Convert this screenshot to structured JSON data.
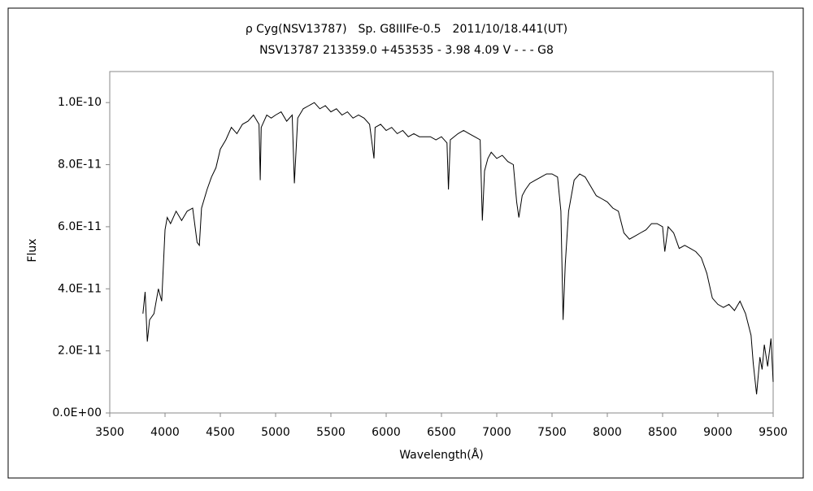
{
  "chart_data": {
    "type": "line",
    "title": "ρ Cyg(NSV13787)　Sp. G8IIIFe-0.5　2011/10/18.441(UT)",
    "subtitle": "NSV13787 213359.0 +453535 - 3.98 4.09 V - - - G8",
    "x_label": "Wavelength(Å)",
    "y_label": "Flux",
    "color": "#000000",
    "xlim": [
      3500,
      9500
    ],
    "xticks": [
      3500,
      4000,
      4500,
      5000,
      5500,
      6000,
      6500,
      7000,
      7500,
      8000,
      8500,
      9000,
      9500
    ],
    "ylim": [
      0,
      1.1e-10
    ],
    "yticks": [
      {
        "value": 0,
        "label": "0.0E+00"
      },
      {
        "value": 2e-11,
        "label": "2.0E-11"
      },
      {
        "value": 4e-11,
        "label": "4.0E-11"
      },
      {
        "value": 6e-11,
        "label": "6.0E-11"
      },
      {
        "value": 8e-11,
        "label": "8.0E-11"
      },
      {
        "value": 1e-10,
        "label": "1.0E-10"
      }
    ],
    "x": [
      3800,
      3820,
      3840,
      3860,
      3900,
      3940,
      3970,
      4000,
      4020,
      4050,
      4100,
      4150,
      4200,
      4250,
      4290,
      4310,
      4330,
      4380,
      4420,
      4460,
      4500,
      4550,
      4600,
      4650,
      4700,
      4750,
      4800,
      4850,
      4861,
      4870,
      4920,
      4960,
      5000,
      5050,
      5100,
      5150,
      5170,
      5200,
      5250,
      5300,
      5350,
      5400,
      5450,
      5500,
      5550,
      5600,
      5650,
      5700,
      5750,
      5800,
      5850,
      5890,
      5900,
      5950,
      6000,
      6050,
      6100,
      6150,
      6200,
      6250,
      6300,
      6350,
      6400,
      6450,
      6500,
      6550,
      6563,
      6580,
      6650,
      6700,
      6750,
      6800,
      6850,
      6870,
      6890,
      6920,
      6950,
      7000,
      7050,
      7100,
      7150,
      7180,
      7200,
      7230,
      7260,
      7300,
      7350,
      7400,
      7450,
      7500,
      7550,
      7580,
      7600,
      7620,
      7650,
      7700,
      7750,
      7800,
      7850,
      7900,
      7950,
      8000,
      8050,
      8100,
      8150,
      8200,
      8250,
      8300,
      8350,
      8400,
      8450,
      8500,
      8520,
      8550,
      8600,
      8650,
      8700,
      8750,
      8800,
      8850,
      8900,
      8950,
      9000,
      9050,
      9100,
      9150,
      9200,
      9250,
      9300,
      9320,
      9350,
      9380,
      9400,
      9420,
      9450,
      9480,
      9500
    ],
    "values": [
      3.2e-11,
      3.9e-11,
      2.3e-11,
      3e-11,
      3.2e-11,
      4e-11,
      3.6e-11,
      5.9e-11,
      6.3e-11,
      6.1e-11,
      6.5e-11,
      6.2e-11,
      6.5e-11,
      6.6e-11,
      5.5e-11,
      5.4e-11,
      6.6e-11,
      7.2e-11,
      7.6e-11,
      7.9e-11,
      8.5e-11,
      8.8e-11,
      9.2e-11,
      9e-11,
      9.3e-11,
      9.4e-11,
      9.6e-11,
      9.3e-11,
      7.5e-11,
      9.2e-11,
      9.6e-11,
      9.5e-11,
      9.6e-11,
      9.7e-11,
      9.4e-11,
      9.6e-11,
      7.4e-11,
      9.5e-11,
      9.8e-11,
      9.9e-11,
      1e-10,
      9.8e-11,
      9.9e-11,
      9.7e-11,
      9.8e-11,
      9.6e-11,
      9.7e-11,
      9.5e-11,
      9.6e-11,
      9.5e-11,
      9.3e-11,
      8.2e-11,
      9.2e-11,
      9.3e-11,
      9.1e-11,
      9.2e-11,
      9e-11,
      9.1e-11,
      8.9e-11,
      9e-11,
      8.9e-11,
      8.9e-11,
      8.9e-11,
      8.8e-11,
      8.9e-11,
      8.7e-11,
      7.2e-11,
      8.8e-11,
      9e-11,
      9.1e-11,
      9e-11,
      8.9e-11,
      8.8e-11,
      6.2e-11,
      7.8e-11,
      8.2e-11,
      8.4e-11,
      8.2e-11,
      8.3e-11,
      8.1e-11,
      8e-11,
      6.8e-11,
      6.3e-11,
      7e-11,
      7.2e-11,
      7.4e-11,
      7.5e-11,
      7.6e-11,
      7.7e-11,
      7.7e-11,
      7.6e-11,
      6.5e-11,
      3e-11,
      4.8e-11,
      6.5e-11,
      7.5e-11,
      7.7e-11,
      7.6e-11,
      7.3e-11,
      7e-11,
      6.9e-11,
      6.8e-11,
      6.6e-11,
      6.5e-11,
      5.8e-11,
      5.6e-11,
      5.7e-11,
      5.8e-11,
      5.9e-11,
      6.1e-11,
      6.1e-11,
      6e-11,
      5.2e-11,
      6e-11,
      5.8e-11,
      5.3e-11,
      5.4e-11,
      5.3e-11,
      5.2e-11,
      5e-11,
      4.5e-11,
      3.7e-11,
      3.5e-11,
      3.4e-11,
      3.5e-11,
      3.3e-11,
      3.6e-11,
      3.2e-11,
      2.5e-11,
      1.6e-11,
      6e-12,
      1.8e-11,
      1.4e-11,
      2.2e-11,
      1.5e-11,
      2.4e-11,
      1e-11
    ]
  }
}
